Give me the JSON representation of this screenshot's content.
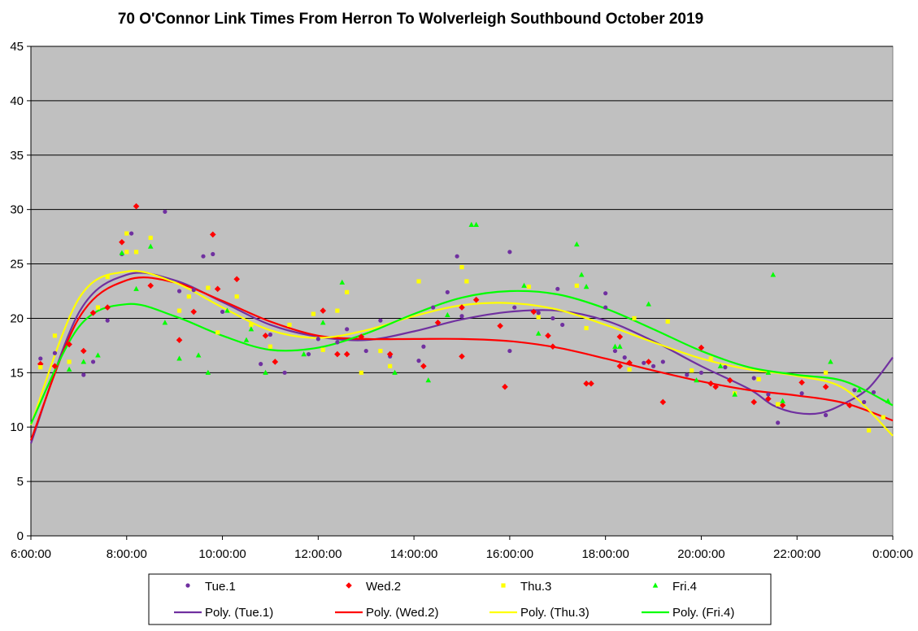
{
  "chart_data": {
    "type": "scatter",
    "title": "70 O'Connor Link Times From Herron To Wolverleigh Southbound October 2019",
    "xlabel": "",
    "ylabel": "",
    "x_ticks": [
      "6:00:00",
      "8:00:00",
      "10:00:00",
      "12:00:00",
      "14:00:00",
      "16:00:00",
      "18:00:00",
      "20:00:00",
      "22:00:00",
      "0:00:00"
    ],
    "y_ticks": [
      "0",
      "5",
      "10",
      "15",
      "20",
      "25",
      "30",
      "35",
      "40",
      "45"
    ],
    "xlim_hours": [
      6,
      24
    ],
    "ylim": [
      0,
      45
    ],
    "grid": "horizontal major gridlines",
    "plot_background": "#C0C0C0",
    "legend_position": "bottom",
    "series": [
      {
        "name": "Tue.1",
        "marker": "circle",
        "color": "#7030A0",
        "points": [
          [
            6.2,
            16.3
          ],
          [
            6.5,
            16.8
          ],
          [
            7.1,
            14.8
          ],
          [
            7.3,
            16.0
          ],
          [
            7.6,
            19.8
          ],
          [
            7.9,
            25.9
          ],
          [
            8.1,
            27.8
          ],
          [
            8.8,
            29.8
          ],
          [
            9.1,
            22.5
          ],
          [
            9.4,
            22.6
          ],
          [
            9.6,
            25.7
          ],
          [
            9.8,
            25.9
          ],
          [
            10.0,
            20.6
          ],
          [
            10.8,
            15.8
          ],
          [
            11.0,
            18.5
          ],
          [
            11.3,
            15.0
          ],
          [
            11.8,
            16.7
          ],
          [
            12.0,
            18.1
          ],
          [
            12.4,
            17.8
          ],
          [
            12.6,
            19.0
          ],
          [
            13.0,
            17.0
          ],
          [
            13.3,
            19.8
          ],
          [
            13.5,
            16.5
          ],
          [
            14.1,
            16.1
          ],
          [
            14.2,
            17.4
          ],
          [
            14.4,
            21.0
          ],
          [
            14.7,
            22.4
          ],
          [
            14.9,
            25.7
          ],
          [
            15.0,
            20.2
          ],
          [
            16.0,
            26.1
          ],
          [
            16.0,
            17.0
          ],
          [
            16.1,
            21.0
          ],
          [
            16.6,
            20.5
          ],
          [
            16.9,
            20.0
          ],
          [
            17.0,
            22.7
          ],
          [
            17.1,
            19.4
          ],
          [
            18.0,
            22.3
          ],
          [
            18.0,
            21.0
          ],
          [
            18.2,
            17.0
          ],
          [
            18.4,
            16.4
          ],
          [
            18.8,
            15.9
          ],
          [
            19.0,
            15.6
          ],
          [
            19.2,
            16.0
          ],
          [
            19.7,
            14.8
          ],
          [
            20.0,
            15.0
          ],
          [
            20.5,
            15.5
          ],
          [
            21.1,
            14.5
          ],
          [
            21.4,
            13.0
          ],
          [
            21.6,
            10.4
          ],
          [
            22.1,
            13.1
          ],
          [
            22.6,
            11.1
          ],
          [
            23.2,
            13.4
          ],
          [
            23.4,
            12.3
          ],
          [
            23.6,
            13.2
          ]
        ]
      },
      {
        "name": "Wed.2",
        "marker": "diamond",
        "color": "#FF0000",
        "points": [
          [
            6.2,
            15.8
          ],
          [
            6.5,
            15.6
          ],
          [
            6.8,
            17.6
          ],
          [
            7.1,
            17.0
          ],
          [
            7.3,
            20.5
          ],
          [
            7.6,
            21.0
          ],
          [
            7.9,
            27.0
          ],
          [
            8.2,
            30.3
          ],
          [
            8.5,
            23.0
          ],
          [
            9.1,
            18.0
          ],
          [
            9.4,
            20.6
          ],
          [
            9.8,
            27.7
          ],
          [
            9.9,
            22.7
          ],
          [
            10.3,
            23.6
          ],
          [
            10.9,
            18.4
          ],
          [
            11.1,
            16.0
          ],
          [
            12.1,
            20.7
          ],
          [
            12.4,
            16.7
          ],
          [
            12.6,
            16.7
          ],
          [
            12.9,
            18.3
          ],
          [
            13.5,
            16.7
          ],
          [
            14.2,
            15.6
          ],
          [
            14.5,
            19.6
          ],
          [
            15.0,
            21.0
          ],
          [
            15.0,
            16.5
          ],
          [
            15.3,
            21.7
          ],
          [
            15.8,
            19.3
          ],
          [
            15.9,
            13.7
          ],
          [
            16.5,
            20.6
          ],
          [
            16.8,
            18.4
          ],
          [
            16.9,
            17.4
          ],
          [
            17.6,
            14.0
          ],
          [
            17.7,
            14.0
          ],
          [
            18.3,
            18.3
          ],
          [
            18.3,
            15.6
          ],
          [
            18.5,
            15.9
          ],
          [
            18.9,
            16.0
          ],
          [
            19.2,
            12.3
          ],
          [
            20.0,
            17.3
          ],
          [
            20.2,
            14.0
          ],
          [
            20.3,
            13.7
          ],
          [
            20.6,
            14.3
          ],
          [
            21.1,
            12.3
          ],
          [
            21.4,
            12.6
          ],
          [
            21.7,
            12.0
          ],
          [
            22.1,
            14.1
          ],
          [
            22.6,
            13.7
          ],
          [
            23.1,
            12.0
          ]
        ]
      },
      {
        "name": "Thu.3",
        "marker": "square",
        "color": "#FFFF00",
        "points": [
          [
            6.2,
            15.5
          ],
          [
            6.5,
            18.4
          ],
          [
            6.8,
            16.0
          ],
          [
            7.4,
            21.0
          ],
          [
            7.6,
            23.8
          ],
          [
            8.0,
            27.8
          ],
          [
            8.0,
            26.1
          ],
          [
            8.2,
            26.1
          ],
          [
            8.5,
            27.4
          ],
          [
            9.1,
            20.7
          ],
          [
            9.3,
            22.0
          ],
          [
            9.7,
            22.8
          ],
          [
            9.9,
            18.7
          ],
          [
            10.3,
            22.0
          ],
          [
            10.6,
            19.4
          ],
          [
            11.0,
            17.4
          ],
          [
            11.4,
            19.4
          ],
          [
            11.9,
            20.4
          ],
          [
            12.1,
            17.1
          ],
          [
            12.4,
            20.7
          ],
          [
            12.6,
            22.4
          ],
          [
            12.9,
            15.0
          ],
          [
            13.3,
            17.0
          ],
          [
            13.5,
            15.6
          ],
          [
            14.1,
            23.4
          ],
          [
            15.0,
            24.7
          ],
          [
            15.1,
            23.4
          ],
          [
            16.4,
            22.9
          ],
          [
            16.6,
            20.1
          ],
          [
            17.4,
            23.0
          ],
          [
            17.6,
            19.1
          ],
          [
            18.5,
            15.3
          ],
          [
            18.6,
            20.0
          ],
          [
            19.3,
            19.7
          ],
          [
            19.8,
            15.2
          ],
          [
            20.2,
            16.3
          ],
          [
            20.7,
            13.1
          ],
          [
            21.2,
            14.4
          ],
          [
            21.6,
            12.1
          ],
          [
            22.6,
            15.0
          ],
          [
            23.5,
            9.7
          ],
          [
            23.8,
            10.9
          ]
        ]
      },
      {
        "name": "Fri.4",
        "marker": "triangle",
        "color": "#00FF00",
        "points": [
          [
            6.8,
            15.3
          ],
          [
            7.1,
            16.0
          ],
          [
            7.4,
            16.6
          ],
          [
            7.9,
            26.0
          ],
          [
            8.2,
            22.7
          ],
          [
            8.5,
            26.6
          ],
          [
            8.8,
            19.6
          ],
          [
            9.1,
            16.3
          ],
          [
            9.5,
            16.6
          ],
          [
            9.7,
            15.0
          ],
          [
            10.1,
            20.7
          ],
          [
            10.5,
            18.0
          ],
          [
            10.6,
            19.0
          ],
          [
            10.9,
            15.0
          ],
          [
            11.7,
            16.7
          ],
          [
            12.1,
            19.6
          ],
          [
            12.5,
            23.3
          ],
          [
            13.6,
            15.0
          ],
          [
            14.3,
            14.3
          ],
          [
            14.7,
            20.3
          ],
          [
            15.2,
            28.6
          ],
          [
            15.3,
            28.6
          ],
          [
            16.3,
            23.0
          ],
          [
            16.6,
            18.6
          ],
          [
            17.4,
            26.8
          ],
          [
            17.5,
            24.0
          ],
          [
            17.6,
            22.9
          ],
          [
            18.2,
            17.4
          ],
          [
            18.3,
            17.4
          ],
          [
            18.9,
            21.3
          ],
          [
            19.9,
            14.3
          ],
          [
            20.4,
            15.6
          ],
          [
            20.7,
            13.0
          ],
          [
            21.4,
            15.0
          ],
          [
            21.5,
            24.0
          ],
          [
            21.7,
            12.4
          ],
          [
            22.7,
            16.0
          ],
          [
            23.3,
            13.4
          ],
          [
            23.9,
            12.4
          ]
        ]
      }
    ],
    "trendlines": [
      {
        "name": "Poly. (Tue.1)",
        "color": "#7030A0",
        "points": [
          [
            6,
            8.5
          ],
          [
            7,
            20.5
          ],
          [
            8,
            24.0
          ],
          [
            9,
            23.5
          ],
          [
            10,
            21.5
          ],
          [
            11,
            19.4
          ],
          [
            12,
            18.3
          ],
          [
            13,
            18.0
          ],
          [
            14,
            18.8
          ],
          [
            15,
            19.9
          ],
          [
            16,
            20.6
          ],
          [
            17,
            20.7
          ],
          [
            18,
            19.8
          ],
          [
            19,
            17.9
          ],
          [
            20,
            15.6
          ],
          [
            21,
            13.5
          ],
          [
            21.5,
            12.0
          ],
          [
            22,
            11.3
          ],
          [
            22.5,
            11.3
          ],
          [
            23,
            12.2
          ],
          [
            23.5,
            13.6
          ],
          [
            24,
            16.4
          ]
        ]
      },
      {
        "name": "Poly. (Wed.2)",
        "color": "#FF0000",
        "points": [
          [
            6,
            8.8
          ],
          [
            7,
            20.0
          ],
          [
            8,
            23.5
          ],
          [
            9,
            23.3
          ],
          [
            10,
            21.6
          ],
          [
            11,
            19.7
          ],
          [
            12,
            18.4
          ],
          [
            13,
            18.1
          ],
          [
            14,
            18.1
          ],
          [
            15,
            18.1
          ],
          [
            16,
            17.9
          ],
          [
            17,
            17.3
          ],
          [
            18,
            16.3
          ],
          [
            19,
            15.2
          ],
          [
            20,
            14.2
          ],
          [
            21,
            13.4
          ],
          [
            22,
            12.9
          ],
          [
            23,
            12.2
          ],
          [
            24,
            10.6
          ]
        ]
      },
      {
        "name": "Poly. (Thu.3)",
        "color": "#FFFF00",
        "points": [
          [
            6,
            10.2
          ],
          [
            7,
            21.8
          ],
          [
            8,
            24.3
          ],
          [
            9,
            23.3
          ],
          [
            10,
            21.0
          ],
          [
            11,
            18.9
          ],
          [
            12,
            18.2
          ],
          [
            13,
            18.9
          ],
          [
            14,
            20.2
          ],
          [
            15,
            21.2
          ],
          [
            16,
            21.4
          ],
          [
            17,
            20.8
          ],
          [
            18,
            19.4
          ],
          [
            19,
            17.8
          ],
          [
            20,
            16.3
          ],
          [
            21,
            15.3
          ],
          [
            22,
            14.7
          ],
          [
            23,
            13.5
          ],
          [
            24,
            9.2
          ]
        ]
      },
      {
        "name": "Poly. (Fri.4)",
        "color": "#00FF00",
        "points": [
          [
            6,
            10.3
          ],
          [
            7,
            19.2
          ],
          [
            8,
            21.3
          ],
          [
            9,
            20.2
          ],
          [
            10,
            18.4
          ],
          [
            11,
            17.1
          ],
          [
            12,
            17.3
          ],
          [
            13,
            18.6
          ],
          [
            14,
            20.4
          ],
          [
            15,
            21.9
          ],
          [
            16,
            22.5
          ],
          [
            17,
            22.2
          ],
          [
            18,
            20.9
          ],
          [
            19,
            19.0
          ],
          [
            20,
            17.0
          ],
          [
            21,
            15.5
          ],
          [
            22,
            14.8
          ],
          [
            23,
            14.2
          ],
          [
            24,
            12.0
          ]
        ]
      }
    ]
  }
}
